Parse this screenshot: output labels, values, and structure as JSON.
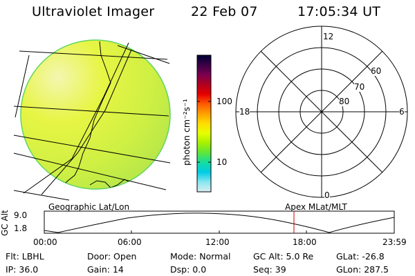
{
  "header": {
    "instrument": "Ultraviolet Imager",
    "date": "22 Feb 07",
    "time": "17:05:34 UT"
  },
  "colorbar": {
    "unit_label": "photon cm⁻²s⁻¹",
    "ticks": [
      "100",
      "10"
    ],
    "colors": [
      "#000033",
      "#3a0046",
      "#7a0050",
      "#b0001e",
      "#e60000",
      "#ff5a00",
      "#ffa000",
      "#ffdd00",
      "#e6ff00",
      "#a6f000",
      "#5ee63a",
      "#14dca0",
      "#00cce6",
      "#8ae6f0",
      "#d8eef2"
    ]
  },
  "image_panel": {
    "title": "Geographic Lat/Lon",
    "disk_colors": [
      "#f4f6b0",
      "#e7f544",
      "#cdef44",
      "#a8e24c"
    ]
  },
  "polar_panel": {
    "title": "Apex MLat/MLT",
    "mlt_labels": [
      "12",
      "18",
      "6",
      "0"
    ],
    "mlat_labels": [
      "60",
      "70",
      "80"
    ]
  },
  "altitude_plot": {
    "ylabel": "GC Alt",
    "yticks": [
      "9.0",
      "1.8"
    ],
    "xticks": [
      "00:00",
      "06:00",
      "12:00",
      "18:00",
      "23:59"
    ],
    "current_marker_color": "#cc0000"
  },
  "status": {
    "row1": [
      {
        "label": "Flt:",
        "value": "LBHL"
      },
      {
        "label": "Door:",
        "value": "Open"
      },
      {
        "label": "Mode:",
        "value": "Normal"
      },
      {
        "label": "GC Alt:",
        "value": "5.0 Re"
      },
      {
        "label": "GLat:",
        "value": "-26.8"
      }
    ],
    "row2": [
      {
        "label": "IP:",
        "value": "36.0"
      },
      {
        "label": "Gain:",
        "value": "14"
      },
      {
        "label": "Dsp:",
        "value": "0.0"
      },
      {
        "label": "Seq:",
        "value": "39"
      },
      {
        "label": "GLon:",
        "value": "287.5"
      }
    ]
  }
}
